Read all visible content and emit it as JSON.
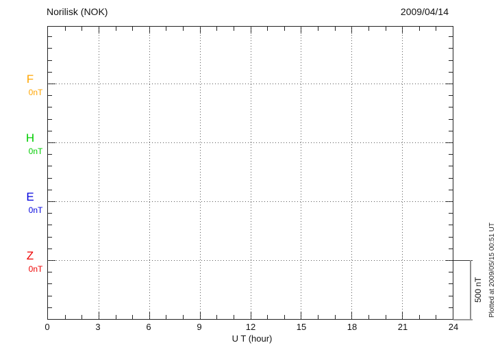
{
  "header": {
    "title": "Norilisk (NOK)",
    "date": "2009/04/14"
  },
  "components": [
    {
      "name": "F",
      "value_label": "0nT",
      "color": "#FFA500"
    },
    {
      "name": "H",
      "value_label": "0nT",
      "color": "#00CC00"
    },
    {
      "name": "E",
      "value_label": "0nT",
      "color": "#0000DD"
    },
    {
      "name": "Z",
      "value_label": "0nT",
      "color": "#EE0000"
    }
  ],
  "x_axis": {
    "label": "U T (hour)",
    "ticks": [
      "0",
      "3",
      "6",
      "9",
      "12",
      "15",
      "18",
      "21",
      "24"
    ]
  },
  "scale_bar": {
    "label": "500 nT"
  },
  "side_note": "Plotted at 2009/05/15 00:51 UT",
  "chart_data": {
    "type": "line",
    "title": "Norilisk (NOK)",
    "date": "2009/04/14",
    "xlabel": "U T (hour)",
    "x_range": [
      0,
      24
    ],
    "x_ticks": [
      0,
      3,
      6,
      9,
      12,
      15,
      18,
      21,
      24
    ],
    "grid": true,
    "y_scale": {
      "nT_per_division": 500,
      "scale_bar_label": "500 nT"
    },
    "series": [
      {
        "name": "F",
        "baseline_label": "0nT",
        "baseline_nT": 0,
        "color": "#FFA500",
        "values": []
      },
      {
        "name": "H",
        "baseline_label": "0nT",
        "baseline_nT": 0,
        "color": "#00CC00",
        "values": []
      },
      {
        "name": "E",
        "baseline_label": "0nT",
        "baseline_nT": 0,
        "color": "#0000DD",
        "values": []
      },
      {
        "name": "Z",
        "baseline_label": "0nT",
        "baseline_nT": 0,
        "color": "#EE0000",
        "values": []
      }
    ],
    "plotted_at": "Plotted at 2009/05/15 00:51 UT"
  }
}
